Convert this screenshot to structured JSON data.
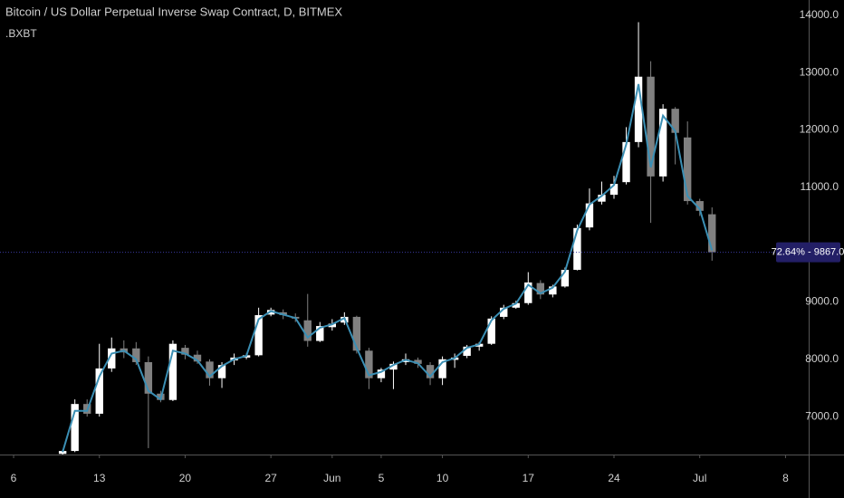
{
  "chart_data": {
    "type": "candlestick",
    "title": "Bitcoin / US Dollar Perpetual Inverse Swap Contract, D, BITMEX",
    "subtitle": ".BXBT",
    "x": [
      4,
      5,
      6,
      7,
      8,
      9,
      10,
      11,
      12,
      13,
      14,
      15,
      16,
      17,
      18,
      19,
      20,
      21,
      22,
      23,
      24,
      25,
      26,
      27,
      28,
      29,
      30,
      31,
      32,
      33,
      34,
      35,
      36,
      37,
      38,
      39,
      40,
      41,
      42,
      43,
      44,
      45,
      46,
      47,
      48,
      49,
      50,
      51,
      52,
      53,
      54,
      55,
      56,
      57
    ],
    "open": [
      6350,
      6400,
      7220,
      7050,
      7840,
      8190,
      8190,
      7950,
      7400,
      7290,
      8200,
      8080,
      7960,
      7670,
      7980,
      8030,
      8070,
      8780,
      8820,
      8740,
      8680,
      8320,
      8560,
      8640,
      8740,
      8150,
      7670,
      7820,
      7950,
      7990,
      7900,
      7670,
      7990,
      8060,
      8220,
      8270,
      8740,
      8900,
      8980,
      9330,
      9130,
      9270,
      9560,
      10300,
      10750,
      10870,
      11090,
      11790,
      12930,
      11190,
      12370,
      11870,
      10760,
      10530
    ],
    "high": [
      6420,
      7300,
      7300,
      8270,
      8380,
      8330,
      8300,
      8050,
      7450,
      8330,
      8250,
      8150,
      8000,
      7950,
      8100,
      8100,
      8900,
      8900,
      8870,
      8800,
      9140,
      8650,
      8700,
      8820,
      8760,
      8200,
      7850,
      7960,
      8100,
      8030,
      7950,
      8050,
      8100,
      8250,
      8300,
      8750,
      8950,
      9020,
      9520,
      9380,
      9300,
      9600,
      10350,
      10980,
      11100,
      11200,
      12050,
      13880,
      13200,
      12450,
      12400,
      12150,
      10800,
      10650
    ],
    "low": [
      6300,
      6380,
      7000,
      7000,
      7780,
      8020,
      7900,
      6450,
      7250,
      7270,
      8000,
      7920,
      7540,
      7500,
      7900,
      8000,
      8050,
      8750,
      8700,
      8650,
      8220,
      8300,
      8500,
      8600,
      8100,
      7480,
      7600,
      7480,
      7900,
      7850,
      7550,
      7550,
      7850,
      8020,
      8150,
      8250,
      8700,
      8880,
      8950,
      9050,
      9080,
      9250,
      9550,
      10250,
      10700,
      10800,
      11050,
      11700,
      10380,
      11100,
      11400,
      10700,
      10500,
      9720
    ],
    "close": [
      6400,
      7220,
      7050,
      7840,
      8190,
      8120,
      7950,
      7400,
      7290,
      8270,
      8080,
      7960,
      7670,
      7900,
      8030,
      8070,
      8770,
      8860,
      8770,
      8710,
      8320,
      8580,
      8620,
      8740,
      8150,
      7670,
      7820,
      7920,
      8000,
      7920,
      7670,
      8000,
      8030,
      8220,
      8270,
      8710,
      8900,
      8980,
      9340,
      9130,
      9270,
      9560,
      10290,
      10720,
      10870,
      11060,
      11790,
      12930,
      11190,
      12370,
      11950,
      10760,
      10590,
      9867
    ],
    "line_values": [
      6380,
      7100,
      7100,
      7700,
      8100,
      8150,
      8000,
      7450,
      7300,
      8150,
      8100,
      7980,
      7700,
      7880,
      8000,
      8060,
      8700,
      8840,
      8780,
      8720,
      8380,
      8550,
      8610,
      8720,
      8200,
      7720,
      7780,
      7900,
      7990,
      7930,
      7700,
      7950,
      8020,
      8200,
      8260,
      8680,
      8880,
      8970,
      9300,
      9150,
      9250,
      9530,
      10250,
      10700,
      10850,
      11040,
      11750,
      12800,
      11350,
      12250,
      11980,
      10850,
      10620,
      9900
    ],
    "up_color": "#ffffff",
    "down_color": "#808080",
    "line_color": "#3b8fb4",
    "xlim": [
      -1.11,
      64.89
    ],
    "xticks": [
      {
        "value": 0,
        "label": "6"
      },
      {
        "value": 7,
        "label": "13"
      },
      {
        "value": 14,
        "label": "20"
      },
      {
        "value": 21,
        "label": "27"
      },
      {
        "value": 26,
        "label": "Jun"
      },
      {
        "value": 30,
        "label": "5"
      },
      {
        "value": 35,
        "label": "10"
      },
      {
        "value": 42,
        "label": "17"
      },
      {
        "value": 49,
        "label": "24"
      },
      {
        "value": 56,
        "label": "Jul"
      },
      {
        "value": 63,
        "label": "8"
      }
    ],
    "ylim": [
      6338,
      14268
    ],
    "yticks": [
      {
        "value": 7000,
        "label": "7000.0"
      },
      {
        "value": 8000,
        "label": "8000.0"
      },
      {
        "value": 9000,
        "label": "9000.0"
      },
      {
        "value": 11000,
        "label": "11000.0"
      },
      {
        "value": 12000,
        "label": "12000.0"
      },
      {
        "value": 13000,
        "label": "13000.0"
      },
      {
        "value": 14000,
        "label": "14000.0"
      }
    ],
    "price_line": 9867,
    "price_label": "72.64% - 9867.0",
    "price_line_color": "#3a3aa0",
    "price_label_color": "#231f66"
  }
}
